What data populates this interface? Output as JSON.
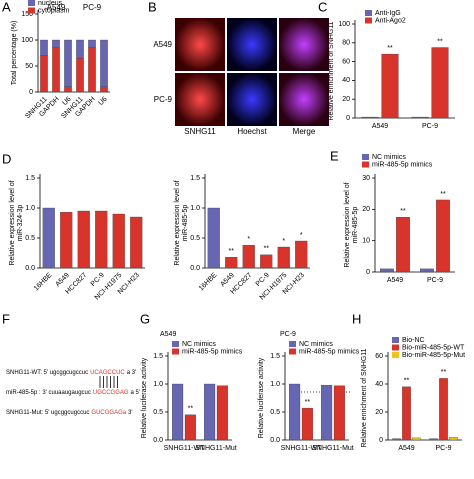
{
  "chart_data": [
    {
      "type": "bar",
      "panel": "A",
      "stacked": true,
      "ylabel": [
        "Total percentage (%)"
      ],
      "categories": [
        "SNHG11",
        "GAPDH",
        "U6",
        "SNHG11",
        "GAPDH",
        "U6"
      ],
      "group_labels": [
        "A549",
        "PC-9"
      ],
      "series": [
        {
          "name": "nucleus",
          "color": "#6666b3",
          "values": [
            30,
            15,
            90,
            35,
            15,
            90
          ]
        },
        {
          "name": "cytoplasm",
          "color": "#d9342b",
          "values": [
            70,
            85,
            10,
            65,
            85,
            10
          ]
        }
      ],
      "ylim": [
        0,
        150
      ],
      "yticks": [
        0,
        50,
        100,
        150
      ]
    },
    {
      "type": "bar",
      "panel": "C",
      "ylabel": [
        "Relative enrichment of SNHG11"
      ],
      "categories": [
        "A549",
        "PC-9"
      ],
      "series": [
        {
          "name": "Anti-IgG",
          "color": "#6666b3",
          "values": [
            1,
            1
          ]
        },
        {
          "name": "Anti-Ago2",
          "color": "#d9342b",
          "values": [
            68,
            75
          ],
          "significance": [
            "**",
            "**"
          ]
        }
      ],
      "ylim": [
        0,
        100
      ],
      "yticks": [
        0,
        20,
        40,
        60,
        80,
        100
      ]
    },
    {
      "type": "bar",
      "panel": "D",
      "ylabel": [
        "Relative expression level of",
        "miR-324-3p"
      ],
      "categories": [
        "16HBE",
        "A549",
        "HCC827",
        "PC-9",
        "NCI-H1975",
        "NCI-H23"
      ],
      "series": [
        {
          "values": [
            1.0,
            0.93,
            0.95,
            0.95,
            0.9,
            0.85
          ],
          "colors": [
            "#6666b3",
            "#d9342b",
            "#d9342b",
            "#d9342b",
            "#d9342b",
            "#d9342b"
          ]
        }
      ],
      "ylim": [
        0,
        1.5
      ],
      "yticks": [
        {
          "value": 0,
          "label": "0.0"
        },
        0.5,
        {
          "value": 1,
          "label": "1.0"
        },
        1.5
      ]
    },
    {
      "type": "bar",
      "ylabel": [
        "Relative expression level of",
        "miR-485-5p"
      ],
      "categories": [
        "16HBE",
        "A549",
        "HCC827",
        "PC-9",
        "NCI-H1975",
        "NCI-H23"
      ],
      "series": [
        {
          "values": [
            1.0,
            0.18,
            0.38,
            0.22,
            0.35,
            0.45
          ],
          "colors": [
            "#6666b3",
            "#d9342b",
            "#d9342b",
            "#d9342b",
            "#d9342b",
            "#d9342b"
          ],
          "significance": [
            null,
            "**",
            "*",
            "**",
            "*",
            "*"
          ]
        }
      ],
      "ylim": [
        0,
        1.5
      ],
      "yticks": [
        {
          "value": 0,
          "label": "0.0"
        },
        0.5,
        {
          "value": 1,
          "label": "1.0"
        },
        1.5
      ]
    },
    {
      "type": "bar",
      "panel": "E",
      "ylabel": [
        "Relative expression level of",
        "miR-485-5p"
      ],
      "categories": [
        "A549",
        "PC-9"
      ],
      "series": [
        {
          "name": "NC mimics",
          "color": "#6666b3",
          "values": [
            1,
            1
          ]
        },
        {
          "name": "miR-485-5p mimics",
          "color": "#d9342b",
          "values": [
            17.5,
            23
          ],
          "significance": [
            "**",
            "**"
          ]
        }
      ],
      "ylim": [
        0,
        30
      ],
      "yticks": [
        0,
        10,
        20,
        30
      ]
    },
    {
      "type": "bar",
      "panel": "G",
      "title": "A549",
      "ylabel": [
        "Relative luciferase activity"
      ],
      "categories": [
        "SNHG11-WT",
        "SNHG11-Mut"
      ],
      "series": [
        {
          "name": "NC mimics",
          "color": "#6666b3",
          "values": [
            1.0,
            1.0
          ]
        },
        {
          "name": "miR-485-5p mimics",
          "color": "#d9342b",
          "values": [
            0.45,
            0.97
          ],
          "significance": [
            "**",
            null
          ]
        }
      ],
      "ylim": [
        0,
        1.5
      ],
      "yticks": [
        {
          "value": 0,
          "label": "0.0"
        },
        0.5,
        {
          "value": 1,
          "label": "1.0"
        },
        1.5
      ]
    },
    {
      "type": "bar",
      "title": "PC-9",
      "ylabel": [
        "Relative luciferase activity"
      ],
      "categories": [
        "SNHG11-WT",
        "SNHG11-Mut"
      ],
      "series": [
        {
          "name": "NC mimics",
          "color": "#6666b3",
          "values": [
            1.0,
            0.98
          ]
        },
        {
          "name": "miR-485-5p mimics",
          "color": "#d9342b",
          "values": [
            0.57,
            0.97
          ],
          "significance": [
            "**",
            null
          ]
        }
      ],
      "ylim": [
        0,
        1.5
      ],
      "yticks": [
        {
          "value": 0,
          "label": "0.0"
        },
        0.5,
        {
          "value": 1,
          "label": "1.0"
        },
        1.5
      ]
    },
    {
      "type": "bar",
      "panel": "H",
      "ylabel": [
        "Relative enrichment of SNHG11"
      ],
      "categories": [
        "A549",
        "PC-9"
      ],
      "series": [
        {
          "name": "Bio-NC",
          "color": "#6666b3",
          "values": [
            1,
            1
          ]
        },
        {
          "name": "Bio-miR-485-5p-WT",
          "color": "#d9342b",
          "values": [
            38,
            44
          ],
          "significance": [
            "**",
            "**"
          ]
        },
        {
          "name": "Bio-miR-485-5p-Mut",
          "color": "#f0c419",
          "values": [
            1.5,
            2
          ]
        }
      ],
      "ylim": [
        0,
        60
      ],
      "yticks": [
        0,
        20,
        40,
        60
      ]
    }
  ],
  "panel_B": {
    "panel": "B",
    "rows": [
      "A549",
      "PC-9"
    ],
    "columns": [
      "SNHG11",
      "Hoechst",
      "Merge"
    ]
  },
  "panel_F": {
    "panel": "F",
    "lines": [
      {
        "prefix": "SNHG11-WT: 5' ugcggcugccuc",
        "site": "UCAGCCUC",
        "suffix": "a 3'"
      },
      {
        "prefix": "miR-485-5p : 3' cuuaaugaugcuc",
        "site": "UGCCGGAG",
        "suffix": "a 5'"
      },
      {
        "prefix": "SNHG11-Mut: 5' ugcggcugccuc",
        "site": "GUCGGAGa",
        "suffix": "3'"
      }
    ]
  }
}
